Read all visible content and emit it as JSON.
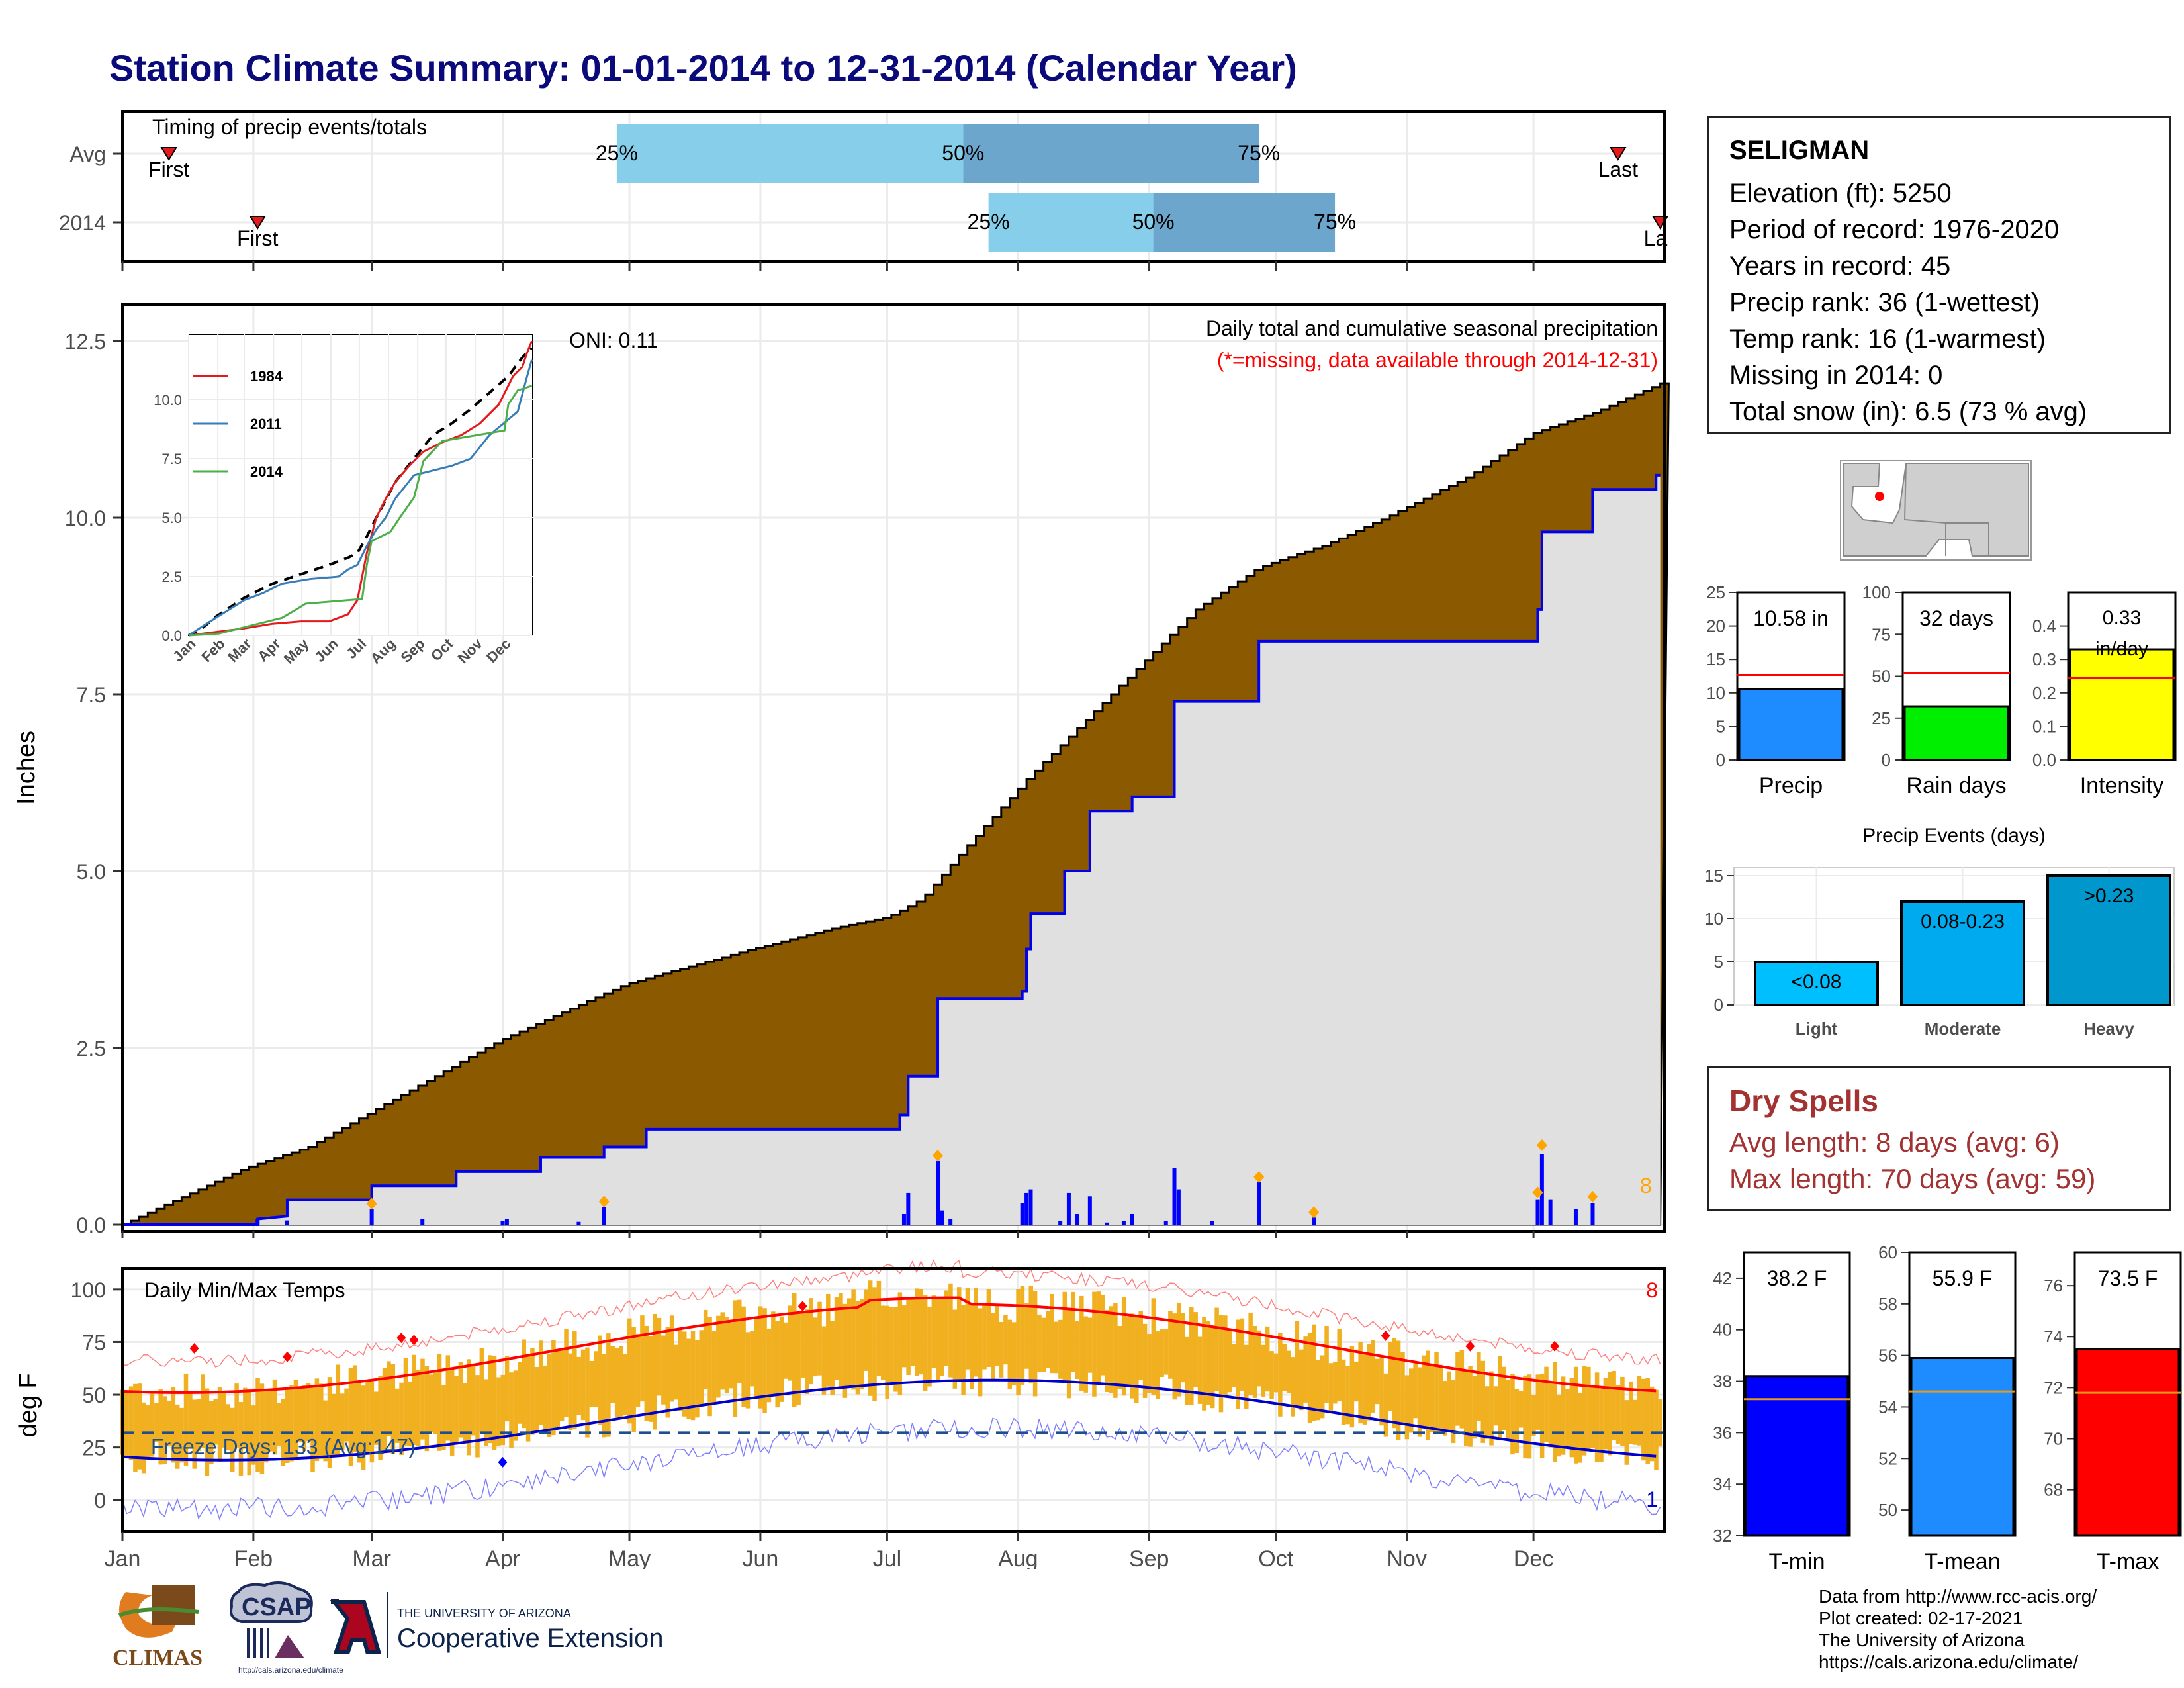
{
  "header": {
    "title": "Station Climate Summary: 01-01-2014 to 12-31-2014 (Calendar Year)"
  },
  "station": {
    "name": "SELIGMAN",
    "lines": [
      "Elevation (ft): 5250",
      "Period of record: 1976-2020",
      "Years in record: 45",
      "Precip rank: 36 (1-wettest)",
      "Temp rank: 16 (1-warmest)",
      "Missing in 2014: 0",
      "Total snow (in): 6.5 (73 % avg)"
    ]
  },
  "dry_spells": {
    "title": "Dry Spells",
    "avg_length": "Avg length: 8 days (avg: 6)",
    "max_length": "Max length: 70 days (avg: 59)"
  },
  "credits": [
    "Data from http://www.rcc-acis.org/",
    "Plot created: 02-17-2021",
    "The University of Arizona",
    "https://cals.arizona.edu/climate/"
  ],
  "logos": {
    "climas": "CLIMAS",
    "csap": "CSAP",
    "csap_url": "http://cals.arizona.edu/climate",
    "ua_small": "THE UNIVERSITY OF ARIZONA",
    "ua_big": "Cooperative Extension"
  },
  "months": [
    "Jan",
    "Feb",
    "Mar",
    "Apr",
    "May",
    "Jun",
    "Jul",
    "Aug",
    "Sep",
    "Oct",
    "Nov",
    "Dec"
  ],
  "chart_data": [
    {
      "id": "timing",
      "type": "bar",
      "title": "Timing of precip events/totals",
      "rows": [
        {
          "label": "Avg",
          "first_doy": 12,
          "last_doy": 355,
          "p25_doy": 118,
          "p50_doy": 200,
          "p75_doy": 270
        },
        {
          "label": "2014",
          "first_doy": 33,
          "last_doy": 365,
          "p25_doy": 206,
          "p50_doy": 245,
          "p75_doy": 288
        }
      ],
      "marker_labels": {
        "first": "First",
        "last": "Last",
        "last_clipped": "La",
        "p25": "25%",
        "p50": "50%",
        "p75": "75%"
      }
    },
    {
      "id": "precip",
      "type": "area",
      "title": "Daily total and cumulative seasonal precipitation",
      "subtitle": "(*=missing, data available through 2014-12-31)",
      "oni": "ONI: 0.11",
      "ylabel": "Inches",
      "ylim": [
        0,
        13.0
      ],
      "yticks": [
        "0.0",
        "2.5",
        "5.0",
        "7.5",
        "10.0",
        "12.5"
      ],
      "count_label": "8",
      "avg_cumulative": [
        [
          1,
          0.0
        ],
        [
          10,
          0.25
        ],
        [
          30,
          0.8
        ],
        [
          45,
          1.1
        ],
        [
          60,
          1.6
        ],
        [
          75,
          2.1
        ],
        [
          90,
          2.6
        ],
        [
          105,
          3.0
        ],
        [
          120,
          3.4
        ],
        [
          150,
          3.9
        ],
        [
          170,
          4.2
        ],
        [
          182,
          4.35
        ],
        [
          190,
          4.6
        ],
        [
          200,
          5.3
        ],
        [
          215,
          6.3
        ],
        [
          225,
          6.9
        ],
        [
          240,
          7.8
        ],
        [
          255,
          8.7
        ],
        [
          270,
          9.3
        ],
        [
          285,
          9.6
        ],
        [
          300,
          10.0
        ],
        [
          320,
          10.6
        ],
        [
          335,
          11.2
        ],
        [
          350,
          11.5
        ],
        [
          365,
          11.9
        ]
      ],
      "cumulative_2014": [
        [
          1,
          0.0
        ],
        [
          33,
          0.0
        ],
        [
          33,
          0.08
        ],
        [
          40,
          0.12
        ],
        [
          40,
          0.35
        ],
        [
          60,
          0.35
        ],
        [
          60,
          0.55
        ],
        [
          80,
          0.55
        ],
        [
          80,
          0.75
        ],
        [
          100,
          0.75
        ],
        [
          100,
          0.95
        ],
        [
          115,
          0.95
        ],
        [
          115,
          1.1
        ],
        [
          125,
          1.1
        ],
        [
          125,
          1.35
        ],
        [
          185,
          1.35
        ],
        [
          185,
          1.55
        ],
        [
          187,
          1.55
        ],
        [
          187,
          2.1
        ],
        [
          194,
          2.1
        ],
        [
          194,
          3.2
        ],
        [
          214,
          3.2
        ],
        [
          214,
          3.3
        ],
        [
          215,
          3.3
        ],
        [
          215,
          3.9
        ],
        [
          216,
          3.9
        ],
        [
          216,
          4.4
        ],
        [
          224,
          4.4
        ],
        [
          224,
          5.0
        ],
        [
          230,
          5.0
        ],
        [
          230,
          5.85
        ],
        [
          240,
          5.85
        ],
        [
          240,
          6.05
        ],
        [
          250,
          6.05
        ],
        [
          250,
          7.4
        ],
        [
          270,
          7.4
        ],
        [
          270,
          8.25
        ],
        [
          336,
          8.25
        ],
        [
          336,
          8.7
        ],
        [
          337,
          8.7
        ],
        [
          337,
          9.8
        ],
        [
          349,
          9.8
        ],
        [
          349,
          10.4
        ],
        [
          364,
          10.4
        ],
        [
          364,
          10.6
        ],
        [
          365,
          10.6
        ]
      ],
      "daily_bars": [
        [
          33,
          0.08
        ],
        [
          40,
          0.06
        ],
        [
          60,
          0.22
        ],
        [
          72,
          0.08
        ],
        [
          91,
          0.05
        ],
        [
          92,
          0.08
        ],
        [
          109,
          0.04
        ],
        [
          115,
          0.25
        ],
        [
          186,
          0.15
        ],
        [
          187,
          0.45
        ],
        [
          194,
          0.9
        ],
        [
          195,
          0.2
        ],
        [
          197,
          0.08
        ],
        [
          214,
          0.3
        ],
        [
          215,
          0.45
        ],
        [
          216,
          0.5
        ],
        [
          223,
          0.05
        ],
        [
          225,
          0.45
        ],
        [
          227,
          0.15
        ],
        [
          230,
          0.4
        ],
        [
          234,
          0.03
        ],
        [
          238,
          0.05
        ],
        [
          240,
          0.15
        ],
        [
          248,
          0.05
        ],
        [
          250,
          0.8
        ],
        [
          251,
          0.5
        ],
        [
          259,
          0.05
        ],
        [
          270,
          0.6
        ],
        [
          283,
          0.1
        ],
        [
          336,
          0.35
        ],
        [
          337,
          1.0
        ],
        [
          339,
          0.35
        ],
        [
          345,
          0.22
        ],
        [
          349,
          0.3
        ]
      ],
      "marked_days": [
        [
          60,
          0.22
        ],
        [
          115,
          0.25
        ],
        [
          194,
          0.9
        ],
        [
          270,
          0.6
        ],
        [
          283,
          0.1
        ],
        [
          336,
          0.38
        ],
        [
          337,
          1.05
        ],
        [
          349,
          0.32
        ]
      ],
      "inset": {
        "yticks": [
          "0.0",
          "2.5",
          "5.0",
          "7.5",
          "10.0"
        ],
        "series": [
          {
            "name": "1984",
            "color": "#e41a1c",
            "points": [
              [
                1,
                0
              ],
              [
                20,
                0.1
              ],
              [
                40,
                0.2
              ],
              [
                60,
                0.3
              ],
              [
                90,
                0.5
              ],
              [
                120,
                0.6
              ],
              [
                150,
                0.6
              ],
              [
                170,
                0.9
              ],
              [
                180,
                1.5
              ],
              [
                190,
                3.5
              ],
              [
                200,
                5.0
              ],
              [
                210,
                5.8
              ],
              [
                220,
                6.5
              ],
              [
                235,
                7.2
              ],
              [
                250,
                7.8
              ],
              [
                270,
                8.2
              ],
              [
                290,
                8.5
              ],
              [
                310,
                9.0
              ],
              [
                330,
                9.8
              ],
              [
                345,
                11.0
              ],
              [
                355,
                11.4
              ],
              [
                360,
                12.0
              ],
              [
                365,
                12.5
              ]
            ]
          },
          {
            "name": "2011",
            "color": "#377eb8",
            "points": [
              [
                1,
                0
              ],
              [
                20,
                0.5
              ],
              [
                40,
                1.0
              ],
              [
                60,
                1.5
              ],
              [
                80,
                1.8
              ],
              [
                100,
                2.2
              ],
              [
                130,
                2.4
              ],
              [
                160,
                2.5
              ],
              [
                170,
                2.8
              ],
              [
                180,
                3.0
              ],
              [
                190,
                3.8
              ],
              [
                200,
                4.5
              ],
              [
                210,
                5.0
              ],
              [
                220,
                5.8
              ],
              [
                240,
                6.8
              ],
              [
                260,
                7.0
              ],
              [
                280,
                7.2
              ],
              [
                300,
                7.5
              ],
              [
                320,
                8.5
              ],
              [
                335,
                9.0
              ],
              [
                350,
                9.5
              ],
              [
                360,
                11.0
              ],
              [
                365,
                11.7
              ]
            ]
          },
          {
            "name": "2014",
            "color": "#4daf4a",
            "points": [
              [
                1,
                0
              ],
              [
                33,
                0.08
              ],
              [
                60,
                0.35
              ],
              [
                80,
                0.55
              ],
              [
                100,
                0.75
              ],
              [
                115,
                1.1
              ],
              [
                125,
                1.35
              ],
              [
                185,
                1.55
              ],
              [
                190,
                3.0
              ],
              [
                195,
                4.0
              ],
              [
                215,
                4.4
              ],
              [
                225,
                5.0
              ],
              [
                240,
                5.85
              ],
              [
                250,
                7.4
              ],
              [
                270,
                8.25
              ],
              [
                336,
                8.7
              ],
              [
                340,
                9.8
              ],
              [
                350,
                10.4
              ],
              [
                365,
                10.6
              ]
            ]
          }
        ],
        "avg_points": [
          [
            1,
            0
          ],
          [
            15,
            0.3
          ],
          [
            30,
            0.8
          ],
          [
            45,
            1.2
          ],
          [
            60,
            1.6
          ],
          [
            90,
            2.2
          ],
          [
            120,
            2.6
          ],
          [
            150,
            3.0
          ],
          [
            170,
            3.3
          ],
          [
            180,
            3.5
          ],
          [
            190,
            4.2
          ],
          [
            200,
            5.0
          ],
          [
            220,
            6.5
          ],
          [
            240,
            7.5
          ],
          [
            260,
            8.5
          ],
          [
            280,
            9.0
          ],
          [
            300,
            9.6
          ],
          [
            320,
            10.3
          ],
          [
            340,
            11.0
          ],
          [
            355,
            11.8
          ],
          [
            365,
            12.2
          ]
        ]
      }
    },
    {
      "id": "temps",
      "type": "bar",
      "title": "Daily Min/Max Temps",
      "ylabel": "deg F",
      "ylim": [
        -15,
        110
      ],
      "yticks": [
        "0",
        "25",
        "50",
        "75",
        "100"
      ],
      "freeze_label": "Freeze Days: 133 (Avg:147)",
      "freeze_line": 32,
      "count_max": "8",
      "count_min": "1"
    },
    {
      "id": "precip_bars",
      "type": "bar",
      "panels": [
        {
          "category": "Precip",
          "value_label": "10.58 in",
          "value": 10.58,
          "avg": 12.7,
          "ylim": [
            0,
            25
          ],
          "yticks": [
            "0",
            "5",
            "10",
            "15",
            "20",
            "25"
          ],
          "color": "#1e8cff"
        },
        {
          "category": "Rain days",
          "value_label": "32 days",
          "value": 32,
          "avg": 52,
          "ylim": [
            0,
            100
          ],
          "yticks": [
            "0",
            "25",
            "50",
            "75",
            "100"
          ],
          "color": "#00ee00"
        },
        {
          "category": "Intensity",
          "value_label": "0.33 in/day",
          "value": 0.33,
          "avg": 0.245,
          "ylim": [
            0,
            0.5
          ],
          "yticks": [
            "0.0",
            "0.1",
            "0.2",
            "0.3",
            "0.4"
          ],
          "color": "#ffff00"
        }
      ]
    },
    {
      "id": "events",
      "type": "bar",
      "title": "Precip Events (days)",
      "categories": [
        "Light",
        "Moderate",
        "Heavy"
      ],
      "values": [
        5,
        12,
        15
      ],
      "bar_labels": [
        "<0.08",
        "0.08-0.23",
        ">0.23"
      ],
      "colors": [
        "#00bfff",
        "#00aaee",
        "#0097cc"
      ],
      "ylim": [
        0,
        16
      ],
      "yticks": [
        "0",
        "5",
        "10",
        "15"
      ]
    },
    {
      "id": "temp_bars",
      "type": "bar",
      "panels": [
        {
          "category": "T-min",
          "value_label": "38.2 F",
          "value": 38.2,
          "avg": 37.3,
          "ylim": [
            32,
            43
          ],
          "yticks": [
            "32",
            "34",
            "36",
            "38",
            "40",
            "42"
          ],
          "color": "#0000ff"
        },
        {
          "category": "T-mean",
          "value_label": "55.9 F",
          "value": 55.9,
          "avg": 54.6,
          "ylim": [
            49,
            60
          ],
          "yticks": [
            "50",
            "52",
            "54",
            "56",
            "58",
            "60"
          ],
          "color": "#1e8cff"
        },
        {
          "category": "T-max",
          "value_label": "73.5 F",
          "value": 73.5,
          "avg": 71.8,
          "ylim": [
            66.2,
            77.3
          ],
          "yticks": [
            "68",
            "70",
            "72",
            "74",
            "76"
          ],
          "color": "#ff0000"
        }
      ]
    }
  ]
}
